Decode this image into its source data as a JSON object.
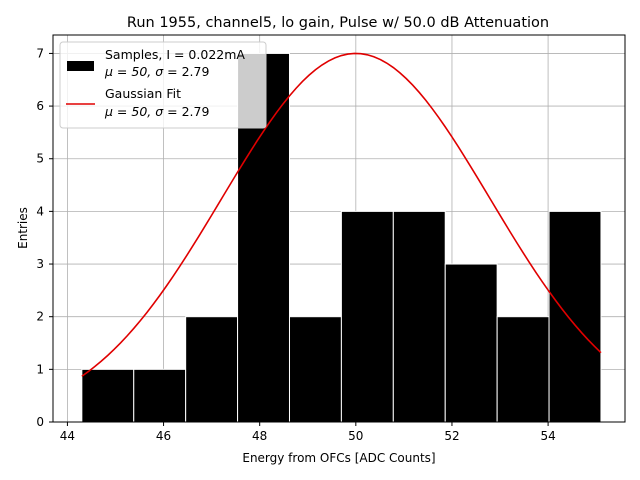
{
  "chart_data": {
    "type": "bar",
    "title": "Run 1955, channel5, lo gain, Pulse w/ 50.0 dB Attenuation",
    "xlabel": "Energy from OFCs [ADC Counts]",
    "ylabel": "Entries",
    "xlim": [
      43.7,
      55.6
    ],
    "ylim": [
      0,
      7.35
    ],
    "xticks": [
      44,
      46,
      48,
      50,
      52,
      54
    ],
    "yticks": [
      0,
      1,
      2,
      3,
      4,
      5,
      6,
      7
    ],
    "grid": true,
    "legend_position": "top-left",
    "histogram": {
      "name": "Samples",
      "bin_edges": [
        44.3,
        45.38,
        46.46,
        47.54,
        48.62,
        49.7,
        50.78,
        51.86,
        52.94,
        54.02,
        55.1
      ],
      "counts": [
        1,
        1,
        2,
        7,
        2,
        4,
        4,
        3,
        2,
        4
      ],
      "color": "#000000",
      "edge_color": "#ffffff"
    },
    "fit": {
      "name": "Gaussian Fit",
      "mu": 50,
      "sigma": 2.79,
      "amplitude": 7.0,
      "x_range": [
        44.3,
        55.1
      ],
      "color": "#e00000"
    },
    "legend": [
      {
        "kind": "bar",
        "line1": "Samples, I = 0.022mA",
        "line2_prefix": "μ = 50, ",
        "line2_sigma": "σ",
        "line2_suffix": " = 2.79"
      },
      {
        "kind": "line",
        "line1": "Gaussian Fit",
        "line2_prefix": "μ = 50, ",
        "line2_sigma": "σ",
        "line2_suffix": " = 2.79"
      }
    ]
  }
}
